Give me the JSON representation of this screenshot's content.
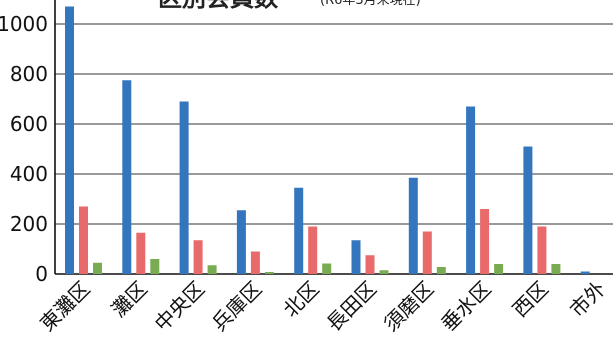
{
  "chart_data": {
    "type": "bar",
    "title": "区別会員数",
    "subtitle": "(R6年3月末現在)",
    "categories": [
      "東灘区",
      "灘区",
      "中央区",
      "兵庫区",
      "北区",
      "長田区",
      "須磨区",
      "垂水区",
      "西区",
      "市外"
    ],
    "series": [
      {
        "color": "#3476be",
        "values": [
          1070,
          775,
          690,
          255,
          345,
          135,
          385,
          670,
          510,
          10
        ]
      },
      {
        "color": "#e86a6a",
        "values": [
          270,
          165,
          135,
          90,
          190,
          75,
          170,
          260,
          190,
          0
        ]
      },
      {
        "color": "#78ab52",
        "values": [
          45,
          60,
          35,
          8,
          42,
          15,
          28,
          40,
          40,
          0
        ]
      }
    ],
    "ylim": [
      0,
      1000
    ],
    "yticks": [
      "0",
      "200",
      "400",
      "600",
      "800",
      "1000"
    ],
    "grid": true
  }
}
